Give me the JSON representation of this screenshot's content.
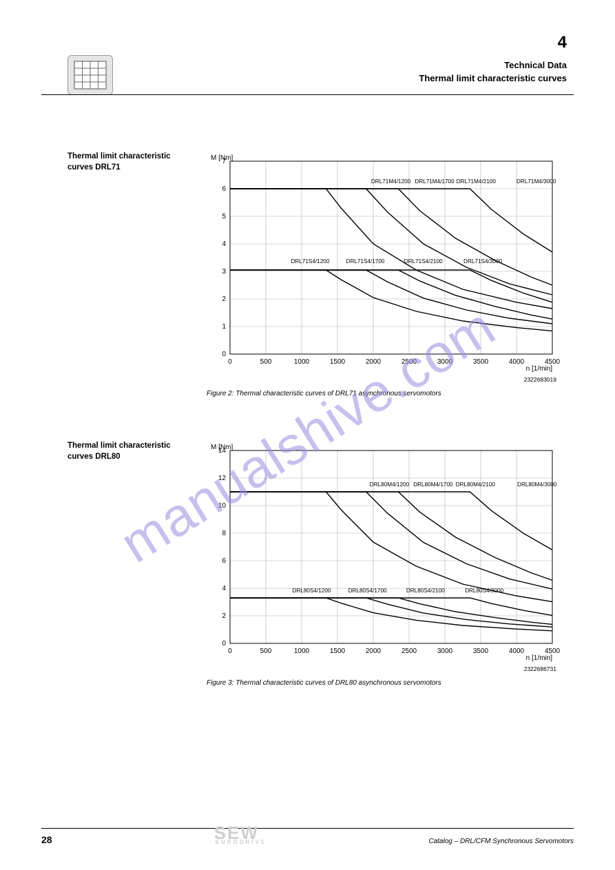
{
  "page": {
    "section_number": "4",
    "header_line1": "Technical Data",
    "header_line2": "Thermal limit characteristic curves",
    "page_number": "28",
    "footer_title": "Catalog – DRL/CFM Synchronous Servomotors",
    "logo_main": "SEW",
    "logo_sub": "EURODRIVE",
    "watermark": "manualshive.com"
  },
  "chart1": {
    "left_title": "Thermal limit characteristic curves DRL71",
    "fig_id": "2322683019",
    "caption": "Figure 2: Thermal characteristic curves of DRL71 asynchronous servomotors",
    "y_label": "M [Nm]",
    "x_label": "n [1/min]",
    "x_ticks": [
      0,
      500,
      1000,
      1500,
      2000,
      2500,
      3000,
      3500,
      4000,
      4500
    ],
    "y_ticks": [
      0,
      1,
      2,
      3,
      4,
      5,
      6,
      7
    ],
    "xlim": [
      0,
      4500
    ],
    "ylim": [
      0,
      7
    ],
    "grid_color": "#b0b0b0",
    "plot_bg": "#ffffff",
    "line_color": "#000000",
    "line_width": 1.4,
    "font_size_ticks": 10,
    "curves": [
      {
        "name": "DRL71M4/1200",
        "label_pos": [
          1970,
          6.2
        ],
        "pts": [
          [
            0,
            6.0
          ],
          [
            1340,
            6.0
          ],
          [
            1550,
            5.3
          ],
          [
            2000,
            4.0
          ],
          [
            2600,
            3.05
          ],
          [
            3250,
            2.35
          ],
          [
            4000,
            1.88
          ],
          [
            4500,
            1.65
          ]
        ]
      },
      {
        "name": "DRL71M4/1700",
        "label_pos": [
          2580,
          6.2
        ],
        "pts": [
          [
            0,
            6.0
          ],
          [
            1900,
            6.0
          ],
          [
            2200,
            5.15
          ],
          [
            2700,
            4.0
          ],
          [
            3300,
            3.15
          ],
          [
            3900,
            2.55
          ],
          [
            4500,
            2.15
          ]
        ]
      },
      {
        "name": "DRL71M4/2100",
        "label_pos": [
          3160,
          6.2
        ],
        "pts": [
          [
            0,
            6.0
          ],
          [
            2350,
            6.0
          ],
          [
            2650,
            5.2
          ],
          [
            3150,
            4.2
          ],
          [
            3700,
            3.4
          ],
          [
            4200,
            2.8
          ],
          [
            4500,
            2.5
          ]
        ]
      },
      {
        "name": "DRL71M4/3000",
        "label_pos": [
          4000,
          6.2
        ],
        "pts": [
          [
            0,
            6.0
          ],
          [
            3350,
            6.0
          ],
          [
            3650,
            5.25
          ],
          [
            4100,
            4.35
          ],
          [
            4500,
            3.7
          ]
        ]
      },
      {
        "name": "DRL71S4/1200",
        "label_pos": [
          850,
          3.3
        ],
        "pts": [
          [
            0,
            3.05
          ],
          [
            1340,
            3.05
          ],
          [
            1550,
            2.7
          ],
          [
            2000,
            2.05
          ],
          [
            2600,
            1.55
          ],
          [
            3250,
            1.2
          ],
          [
            4000,
            0.96
          ],
          [
            4500,
            0.84
          ]
        ]
      },
      {
        "name": "DRL71S4/1700",
        "label_pos": [
          1620,
          3.3
        ],
        "pts": [
          [
            0,
            3.05
          ],
          [
            1900,
            3.05
          ],
          [
            2200,
            2.62
          ],
          [
            2700,
            2.03
          ],
          [
            3300,
            1.6
          ],
          [
            3900,
            1.3
          ],
          [
            4500,
            1.1
          ]
        ]
      },
      {
        "name": "DRL71S4/2100",
        "label_pos": [
          2430,
          3.3
        ],
        "pts": [
          [
            0,
            3.05
          ],
          [
            2350,
            3.05
          ],
          [
            2650,
            2.65
          ],
          [
            3150,
            2.13
          ],
          [
            3700,
            1.73
          ],
          [
            4200,
            1.42
          ],
          [
            4500,
            1.27
          ]
        ]
      },
      {
        "name": "DRL71S4/3000",
        "label_pos": [
          3260,
          3.3
        ],
        "pts": [
          [
            0,
            3.05
          ],
          [
            3350,
            3.05
          ],
          [
            3650,
            2.67
          ],
          [
            4100,
            2.21
          ],
          [
            4500,
            1.88
          ]
        ]
      }
    ]
  },
  "chart2": {
    "left_title": "Thermal limit characteristic curves DRL80",
    "fig_id": "2322686731",
    "caption": "Figure 3: Thermal characteristic curves of DRL80 asynchronous servomotors",
    "y_label": "M [Nm]",
    "x_label": "n [1/min]",
    "x_ticks": [
      0,
      500,
      1000,
      1500,
      2000,
      2500,
      3000,
      3500,
      4000,
      4500
    ],
    "y_ticks": [
      0,
      2,
      4,
      6,
      8,
      10,
      12,
      14
    ],
    "xlim": [
      0,
      4500
    ],
    "ylim": [
      0,
      14
    ],
    "grid_color": "#b0b0b0",
    "plot_bg": "#ffffff",
    "line_color": "#000000",
    "line_width": 1.4,
    "font_size_ticks": 10,
    "curves": [
      {
        "name": "DRL80M4/1200",
        "label_pos": [
          1950,
          11.4
        ],
        "pts": [
          [
            0,
            11.0
          ],
          [
            1340,
            11.0
          ],
          [
            1550,
            9.7
          ],
          [
            2000,
            7.35
          ],
          [
            2600,
            5.6
          ],
          [
            3250,
            4.3
          ],
          [
            4000,
            3.45
          ],
          [
            4500,
            3.02
          ]
        ]
      },
      {
        "name": "DRL80M4/1700",
        "label_pos": [
          2560,
          11.4
        ],
        "pts": [
          [
            0,
            11.0
          ],
          [
            1900,
            11.0
          ],
          [
            2200,
            9.44
          ],
          [
            2700,
            7.33
          ],
          [
            3300,
            5.78
          ],
          [
            3900,
            4.68
          ],
          [
            4500,
            3.94
          ]
        ]
      },
      {
        "name": "DRL80M4/2100",
        "label_pos": [
          3150,
          11.4
        ],
        "pts": [
          [
            0,
            11.0
          ],
          [
            2350,
            11.0
          ],
          [
            2650,
            9.53
          ],
          [
            3150,
            7.7
          ],
          [
            3700,
            6.23
          ],
          [
            4200,
            5.13
          ],
          [
            4500,
            4.58
          ]
        ]
      },
      {
        "name": "DRL80M4/3000",
        "label_pos": [
          4010,
          11.4
        ],
        "pts": [
          [
            0,
            11.0
          ],
          [
            3350,
            11.0
          ],
          [
            3650,
            9.63
          ],
          [
            4100,
            7.98
          ],
          [
            4500,
            6.78
          ]
        ]
      },
      {
        "name": "DRL80S4/1200",
        "label_pos": [
          870,
          3.7
        ],
        "pts": [
          [
            0,
            3.3
          ],
          [
            1340,
            3.3
          ],
          [
            1550,
            2.92
          ],
          [
            2000,
            2.22
          ],
          [
            2600,
            1.68
          ],
          [
            3250,
            1.3
          ],
          [
            4000,
            1.04
          ],
          [
            4500,
            0.91
          ]
        ]
      },
      {
        "name": "DRL80S4/1700",
        "label_pos": [
          1650,
          3.7
        ],
        "pts": [
          [
            0,
            3.3
          ],
          [
            1900,
            3.3
          ],
          [
            2200,
            2.84
          ],
          [
            2700,
            2.2
          ],
          [
            3300,
            1.73
          ],
          [
            3900,
            1.41
          ],
          [
            4500,
            1.19
          ]
        ]
      },
      {
        "name": "DRL80S4/2100",
        "label_pos": [
          2460,
          3.7
        ],
        "pts": [
          [
            0,
            3.3
          ],
          [
            2350,
            3.3
          ],
          [
            2650,
            2.87
          ],
          [
            3150,
            2.3
          ],
          [
            3700,
            1.87
          ],
          [
            4200,
            1.54
          ],
          [
            4500,
            1.38
          ]
        ]
      },
      {
        "name": "DRL80S4/3000",
        "label_pos": [
          3280,
          3.7
        ],
        "pts": [
          [
            0,
            3.3
          ],
          [
            3350,
            3.3
          ],
          [
            3650,
            2.89
          ],
          [
            4100,
            2.39
          ],
          [
            4500,
            2.03
          ]
        ]
      }
    ]
  }
}
